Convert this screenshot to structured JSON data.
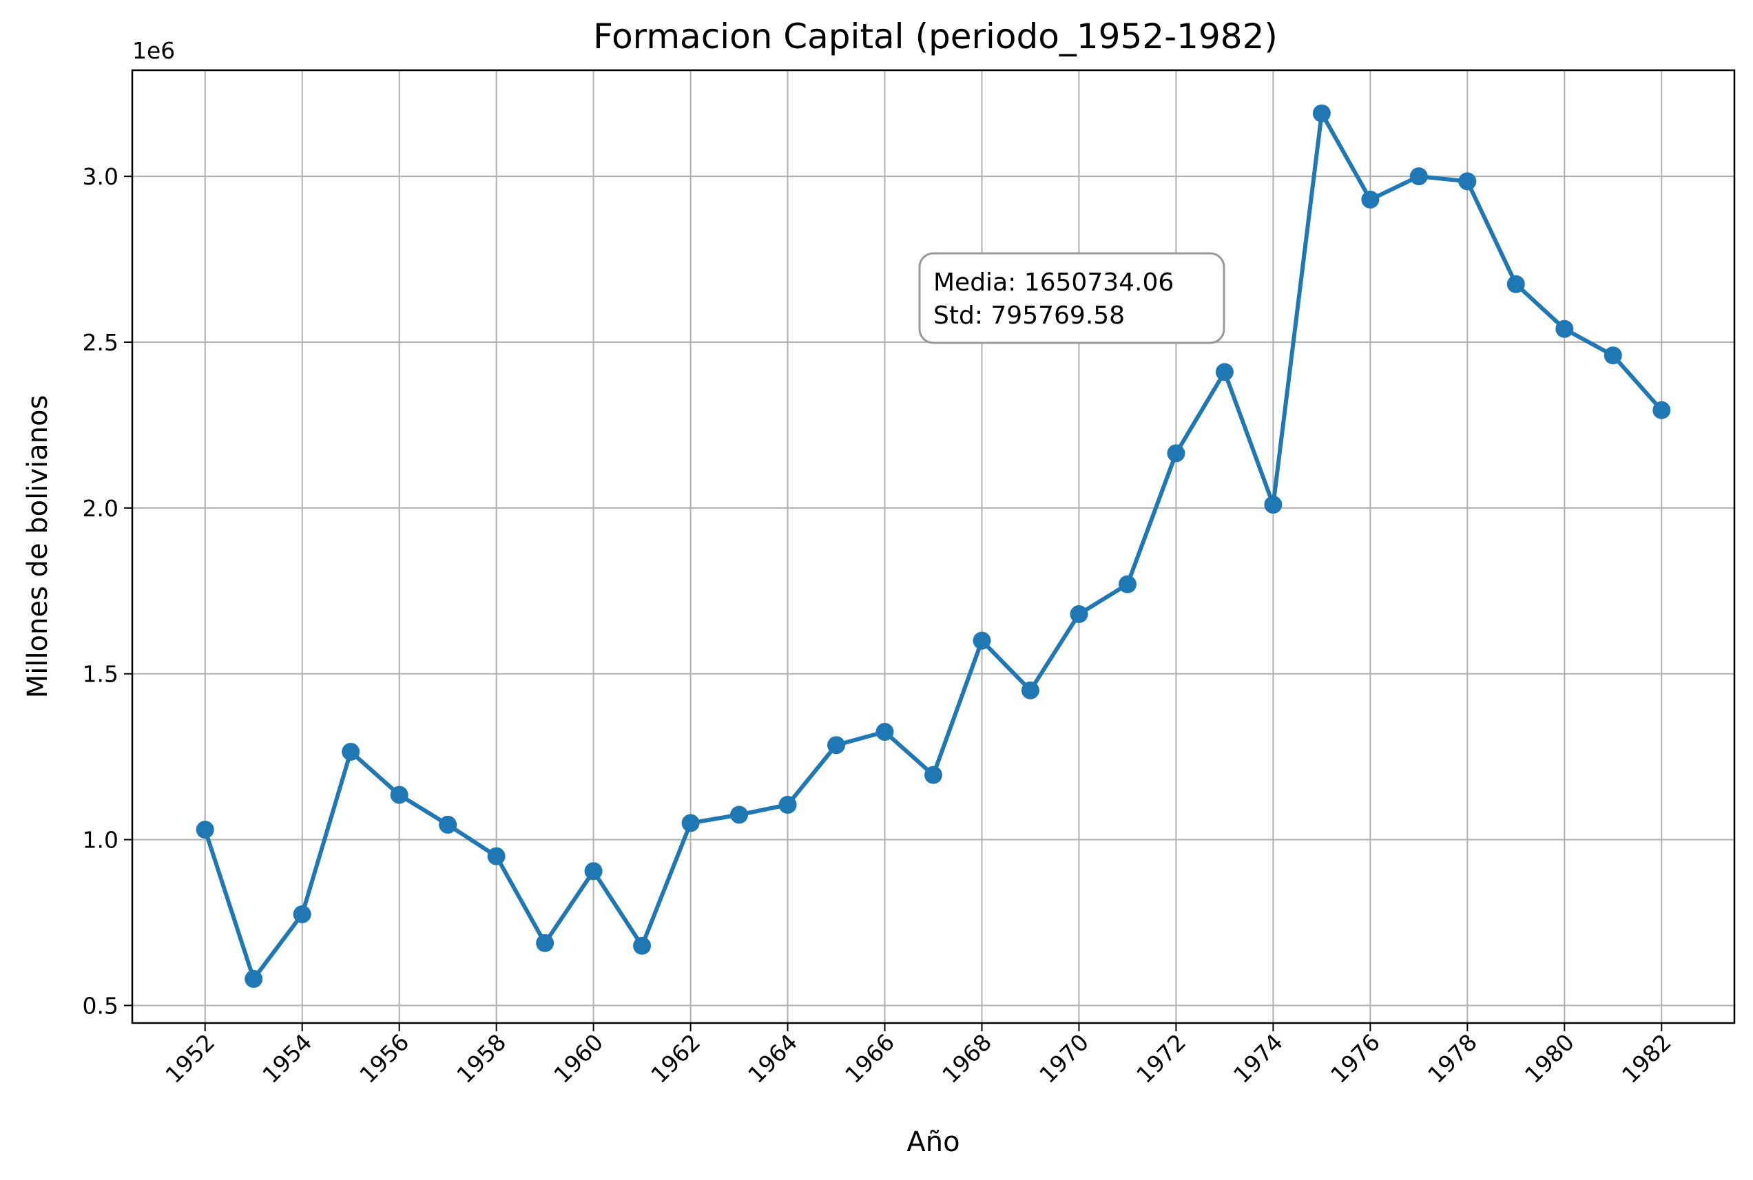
{
  "chart_data": {
    "type": "line",
    "title": "Formacion Capital (periodo_1952-1982)",
    "xlabel": "Año",
    "ylabel": "Millones de bolivianos",
    "y_offset_label": "1e6",
    "x": [
      1952,
      1953,
      1954,
      1955,
      1956,
      1957,
      1958,
      1959,
      1960,
      1961,
      1962,
      1963,
      1964,
      1965,
      1966,
      1967,
      1968,
      1969,
      1970,
      1971,
      1972,
      1973,
      1974,
      1975,
      1976,
      1977,
      1978,
      1979,
      1980,
      1981,
      1982
    ],
    "series": [
      {
        "color": "#1f77b4",
        "marker": "circle",
        "values": [
          1030000,
          580000,
          775000,
          1265000,
          1135000,
          1045000,
          950000,
          688000,
          905000,
          680000,
          1050000,
          1075000,
          1105000,
          1285000,
          1325000,
          1195000,
          1600000,
          1450000,
          1680000,
          1770000,
          2165000,
          2410000,
          2010000,
          3190000,
          2930000,
          3000000,
          2985000,
          2675000,
          2540000,
          2460000,
          2295000
        ]
      }
    ],
    "x_ticks": [
      1952,
      1954,
      1956,
      1958,
      1960,
      1962,
      1964,
      1966,
      1968,
      1970,
      1972,
      1974,
      1976,
      1978,
      1980,
      1982
    ],
    "x_tick_labels": [
      "1952",
      "1954",
      "1956",
      "1958",
      "1960",
      "1962",
      "1964",
      "1966",
      "1968",
      "1970",
      "1972",
      "1974",
      "1976",
      "1978",
      "1980",
      "1982"
    ],
    "y_ticks": [
      500000,
      1000000,
      1500000,
      2000000,
      2500000,
      3000000
    ],
    "y_tick_labels": [
      "0.5",
      "1.0",
      "1.5",
      "2.0",
      "2.5",
      "3.0"
    ],
    "xlim": [
      1950.5,
      1983.5
    ],
    "ylim": [
      447000,
      3320000
    ],
    "grid": true,
    "annotation": {
      "line1": "Media: 1650734.06",
      "line2": "Std: 795769.58"
    }
  }
}
